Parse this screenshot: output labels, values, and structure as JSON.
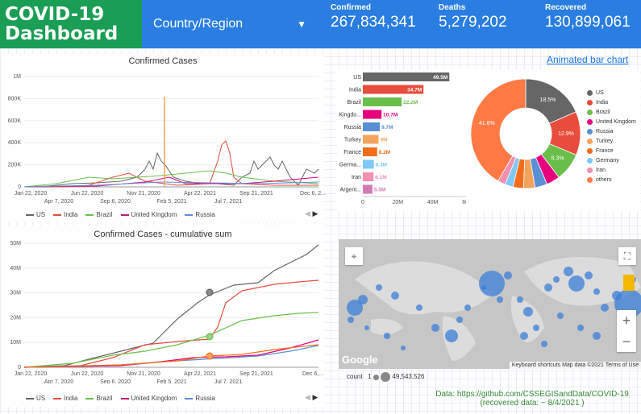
{
  "header": {
    "logo": "COVID-19\nDashboard",
    "country_label": "Country/Region",
    "confirmed_label": "Confirmed",
    "confirmed_value": "267,834,341",
    "deaths_label": "Deaths",
    "deaths_value": "5,279,202",
    "recovered_label": "Recovered",
    "recovered_value": "130,899,061"
  },
  "link": {
    "animated": "Animated bar chart"
  },
  "daily": {
    "title": "Confirmed Cases",
    "yticks": [
      "1M",
      "800K",
      "600K",
      "400K",
      "200K",
      "0"
    ],
    "xticks_top": [
      "Jan 22, 2020",
      "Jun 22, 2020",
      "Nov 21, 2020",
      "Apr 22, 2021",
      "Sep 21, 2021",
      "Dec 6, 2..."
    ],
    "xticks_bottom": [
      "Apr 7, 2020",
      "Sep 6, 2020",
      "Feb 5, 2021",
      "Jul 7, 2021"
    ]
  },
  "cumulative": {
    "title": "Confirmed Cases - cumulative sum",
    "yticks": [
      "50M",
      "40M",
      "30M",
      "20M",
      "10M",
      "0"
    ],
    "xticks_top": [
      "Jan 22, 2020",
      "Jun 22, 2020",
      "Nov 21, 2020",
      "Apr 22, 2021",
      "Sep 21, 2021",
      "Dec 6,..."
    ],
    "xticks_bottom": [
      "Apr 7, 2020",
      "Sep 6, 2020",
      "Feb 5, 2021",
      "Jul 7, 2021"
    ]
  },
  "legend": [
    {
      "name": "US",
      "color": "#666666"
    },
    {
      "name": "India",
      "color": "#e74c3c"
    },
    {
      "name": "Brazil",
      "color": "#6abf4b"
    },
    {
      "name": "United Kingdom",
      "color": "#c2187b"
    },
    {
      "name": "Russia",
      "color": "#5b8fd4"
    }
  ],
  "chart_data": [
    {
      "type": "bar",
      "categories": [
        "US",
        "India",
        "Brazil",
        "United Kingdo...",
        "Russia",
        "Turkey",
        "France",
        "Germa...",
        "Iran",
        "Argent..."
      ],
      "values": [
        49.5,
        34.7,
        22.2,
        10.7,
        9.7,
        9,
        8.2,
        6.3,
        6.1,
        5.5
      ],
      "labels": [
        "49.5M",
        "34.7M",
        "22.2M",
        "10.7M",
        "9.7M",
        "9M",
        "8.2M",
        "6.3M",
        "6.1M",
        "5.5M"
      ],
      "colors": [
        "#666666",
        "#e74c3c",
        "#6abf4b",
        "#e6007e",
        "#5b8fd4",
        "#f5a25d",
        "#f46d1a",
        "#7fc8f8",
        "#f48fb1",
        "#d17bb5"
      ],
      "xticks": [
        "0",
        "20M",
        "40M",
        "60M"
      ],
      "xlim": [
        0,
        60
      ]
    },
    {
      "type": "pie",
      "labels": [
        "US",
        "India",
        "Brazil",
        "United Kingdom",
        "Russia",
        "Turkey",
        "France",
        "Germany",
        "Iran",
        "others"
      ],
      "values": [
        18.5,
        12.9,
        8.3,
        4,
        3.6,
        3.4,
        3.1,
        2.4,
        2.3,
        41.6
      ],
      "slice_labels": [
        "18.5%",
        "12.9%",
        "8.3%",
        "",
        "",
        "",
        "",
        "",
        "",
        "41.6%"
      ],
      "colors": [
        "#666666",
        "#e74c3c",
        "#6abf4b",
        "#e6007e",
        "#5b8fd4",
        "#f5a25d",
        "#f46d1a",
        "#7fc8f8",
        "#f48fb1",
        "#ff7a45"
      ]
    }
  ],
  "map": {
    "footer": "Keyboard shortcuts   Map data ©2021   Terms of Use",
    "google": "Google",
    "count_label": "count",
    "count_min": "1",
    "count_max": "49,543,526",
    "labels": [
      "NORTH AMERICA",
      "AFRICA",
      "OCEANIA",
      "EUROPE",
      "ASIA"
    ]
  },
  "source": {
    "line1": "Data: https://github.com/CSSEGISandData/COVID-19",
    "line2": "(recovered  data: ~ 8/4/2021 )"
  }
}
